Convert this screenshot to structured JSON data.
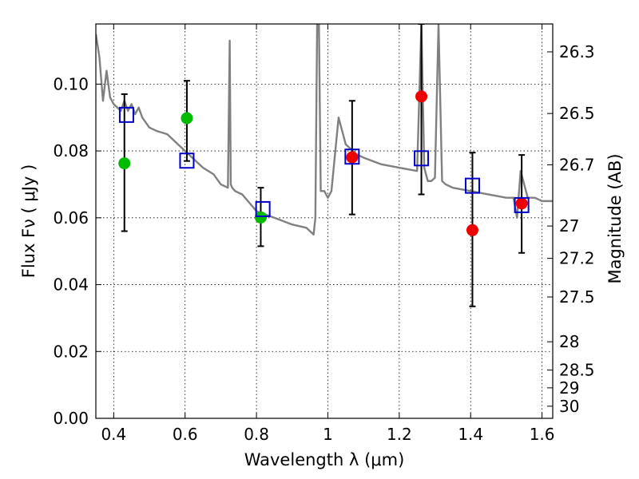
{
  "chart_data": {
    "type": "scatter",
    "xlabel": "Wavelength  λ (μm)",
    "ylabel": "Flux  Fν  ( μJy )",
    "ylabel_right": "Magnitude (AB)",
    "xlim": [
      0.35,
      1.63
    ],
    "ylim": [
      0.0,
      0.118
    ],
    "grid": true,
    "x_ticks": [
      {
        "value": 0.4,
        "label": "0.4"
      },
      {
        "value": 0.6,
        "label": "0.6"
      },
      {
        "value": 0.8,
        "label": "0.8"
      },
      {
        "value": 1.0,
        "label": "1"
      },
      {
        "value": 1.2,
        "label": "1.2"
      },
      {
        "value": 1.4,
        "label": "1.4"
      },
      {
        "value": 1.6,
        "label": "1.6"
      }
    ],
    "y_ticks": [
      {
        "value": 0.0,
        "label": "0.00"
      },
      {
        "value": 0.02,
        "label": "0.02"
      },
      {
        "value": 0.04,
        "label": "0.04"
      },
      {
        "value": 0.06,
        "label": "0.06"
      },
      {
        "value": 0.08,
        "label": "0.08"
      },
      {
        "value": 0.1,
        "label": "0.10"
      }
    ],
    "right_ticks": [
      {
        "value": 26.3,
        "label": "26.3"
      },
      {
        "value": 26.5,
        "label": "26.5"
      },
      {
        "value": 26.7,
        "label": "26.7"
      },
      {
        "value": 27.0,
        "label": "27"
      },
      {
        "value": 27.2,
        "label": "27.2"
      },
      {
        "value": 27.5,
        "label": "27.5"
      },
      {
        "value": 28.0,
        "label": "28"
      },
      {
        "value": 28.5,
        "label": "28.5"
      },
      {
        "value": 29.0,
        "label": "29"
      },
      {
        "value": 30.0,
        "label": "30"
      }
    ],
    "series": [
      {
        "kind": "line",
        "color": "#808080",
        "x": [
          0.35,
          0.36,
          0.37,
          0.38,
          0.39,
          0.4,
          0.41,
          0.42,
          0.43,
          0.44,
          0.45,
          0.46,
          0.47,
          0.48,
          0.5,
          0.52,
          0.55,
          0.58,
          0.6,
          0.62,
          0.65,
          0.68,
          0.7,
          0.72,
          0.725,
          0.728,
          0.732,
          0.74,
          0.76,
          0.8,
          0.85,
          0.9,
          0.94,
          0.96,
          0.965,
          0.97,
          0.975,
          0.98,
          0.99,
          1.0,
          1.01,
          1.03,
          1.05,
          1.08,
          1.1,
          1.15,
          1.2,
          1.25,
          1.262,
          1.27,
          1.28,
          1.29,
          1.3,
          1.31,
          1.32,
          1.33,
          1.35,
          1.4,
          1.45,
          1.5,
          1.52,
          1.53,
          1.54,
          1.56,
          1.58,
          1.6,
          1.63
        ],
        "y": [
          0.115,
          0.108,
          0.095,
          0.104,
          0.096,
          0.094,
          0.093,
          0.092,
          0.095,
          0.092,
          0.094,
          0.091,
          0.093,
          0.09,
          0.087,
          0.086,
          0.085,
          0.082,
          0.08,
          0.078,
          0.075,
          0.073,
          0.07,
          0.069,
          0.113,
          0.07,
          0.069,
          0.068,
          0.067,
          0.062,
          0.06,
          0.058,
          0.057,
          0.055,
          0.06,
          0.118,
          0.118,
          0.068,
          0.068,
          0.066,
          0.068,
          0.09,
          0.082,
          0.079,
          0.078,
          0.076,
          0.075,
          0.074,
          0.118,
          0.075,
          0.071,
          0.071,
          0.072,
          0.118,
          0.071,
          0.07,
          0.069,
          0.068,
          0.067,
          0.066,
          0.066,
          0.06,
          0.074,
          0.066,
          0.066,
          0.065,
          0.065
        ]
      },
      {
        "kind": "errorbar",
        "color": "#000000",
        "x": [
          0.43,
          0.605,
          0.812,
          1.068,
          1.262,
          1.405,
          1.543
        ],
        "y_low": [
          0.056,
          0.077,
          0.0515,
          0.061,
          0.067,
          0.0335,
          0.0495
        ],
        "y_high": [
          0.097,
          0.101,
          0.069,
          0.095,
          0.118,
          0.0795,
          0.0788
        ]
      },
      {
        "kind": "points",
        "marker": "circle",
        "color": "#00bb00",
        "x": [
          0.43,
          0.605,
          0.812
        ],
        "y": [
          0.0763,
          0.0898,
          0.0601
        ]
      },
      {
        "kind": "points",
        "marker": "circle",
        "color": "#ee0000",
        "x": [
          1.068,
          1.262,
          1.405,
          1.543
        ],
        "y": [
          0.0781,
          0.0963,
          0.0563,
          0.0643
        ]
      },
      {
        "kind": "points",
        "marker": "square",
        "color": "#0000cc",
        "x": [
          0.436,
          0.605,
          0.818,
          1.068,
          1.262,
          1.405,
          1.543
        ],
        "y": [
          0.0908,
          0.0771,
          0.0626,
          0.0783,
          0.0778,
          0.0696,
          0.0638
        ]
      }
    ]
  }
}
